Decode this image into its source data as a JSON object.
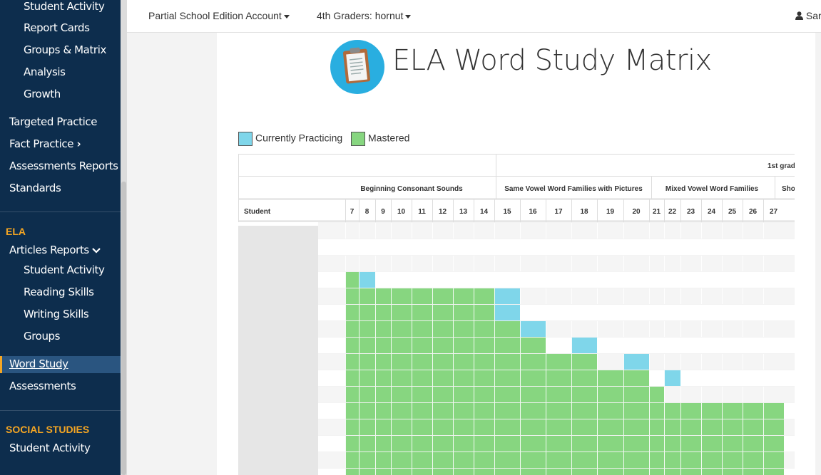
{
  "sidebar": {
    "items_top": [
      {
        "label": "Student Activity"
      },
      {
        "label": "Report Cards"
      },
      {
        "label": "Groups & Matrix"
      },
      {
        "label": "Analysis"
      },
      {
        "label": "Growth"
      }
    ],
    "targeted_practice": "Targeted Practice",
    "fact_practice": "Fact Practice",
    "fact_practice_chevron": "›",
    "assessments_reports": "Assessments Reports",
    "standards": "Standards",
    "ela_heading": "ELA",
    "articles_reports": "Articles Reports",
    "articles_chevron": "⌄",
    "ela_items": [
      {
        "label": "Student Activity"
      },
      {
        "label": "Reading Skills"
      },
      {
        "label": "Writing Skills"
      },
      {
        "label": "Groups"
      }
    ],
    "word_study": "Word Study",
    "assessments": "Assessments",
    "social_studies_heading": "SOCIAL STUDIES",
    "ss_student_activity": "Student Activity"
  },
  "topbar": {
    "account": "Partial School Edition Account",
    "class": "4th Graders: hornut",
    "user": "Sara"
  },
  "page": {
    "title": "ELA Word Study Matrix"
  },
  "legend": {
    "practicing_label": "Currently Practicing",
    "mastered_label": "Mastered",
    "practicing_color": "#7fd6ea",
    "mastered_color": "#87d680"
  },
  "matrix": {
    "grade_label": "1st grad",
    "student_header": "Student",
    "groups": [
      {
        "name": "Beginning Consonant Sounds"
      },
      {
        "name": "Same Vowel Word Families with Pictures"
      },
      {
        "name": "Mixed Vowel Word Families"
      },
      {
        "name": "Sho"
      }
    ],
    "columns": [
      "7",
      "8",
      "9",
      "10",
      "11",
      "12",
      "13",
      "14",
      "15",
      "16",
      "17",
      "18",
      "19",
      "20",
      "21",
      "22",
      "23",
      "24",
      "25",
      "26",
      "27"
    ],
    "mastery_start_row": [
      3,
      4,
      4,
      4,
      4,
      4,
      4,
      4,
      6,
      7,
      8,
      8,
      9,
      9,
      10,
      11,
      11,
      11,
      11,
      11,
      11
    ],
    "practicing_cells": [
      [
        3,
        1
      ],
      [
        4,
        8
      ],
      [
        5,
        8
      ],
      [
        6,
        9
      ],
      [
        7,
        11
      ],
      [
        8,
        13
      ],
      [
        9,
        15
      ]
    ],
    "row_count": 16
  }
}
